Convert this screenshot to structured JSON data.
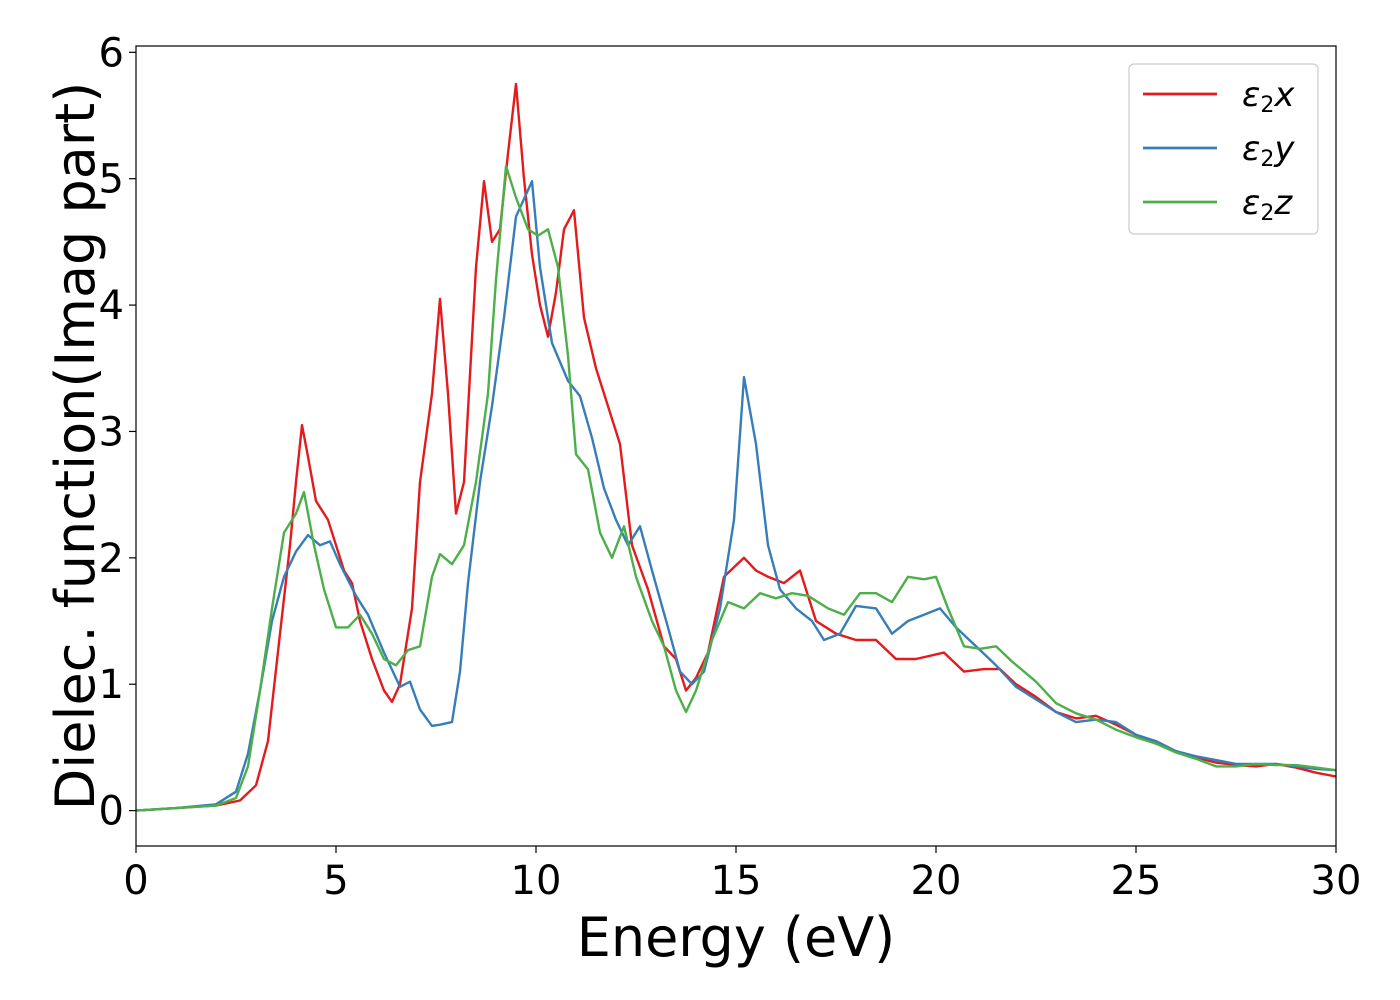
{
  "chart_data": {
    "type": "line",
    "xlabel": "Energy (eV)",
    "ylabel": "Dielec. function(Imag part)",
    "xlim": [
      0,
      30
    ],
    "ylim": [
      -0.28,
      6.05
    ],
    "xticks": [
      "0",
      "5",
      "10",
      "15",
      "20",
      "25",
      "30"
    ],
    "yticks": [
      "0",
      "1",
      "2",
      "3",
      "4",
      "5",
      "6"
    ],
    "grid": false,
    "legend_position": "top-right",
    "series": [
      {
        "name": "ε2x",
        "legend": {
          "main": "ε",
          "sub": "2",
          "suffix": "x"
        },
        "color": "#e41a1c",
        "points": [
          [
            0,
            0
          ],
          [
            1,
            0.02
          ],
          [
            2,
            0.04
          ],
          [
            2.6,
            0.08
          ],
          [
            3,
            0.2
          ],
          [
            3.3,
            0.55
          ],
          [
            3.6,
            1.4
          ],
          [
            3.85,
            2.1
          ],
          [
            4,
            2.6
          ],
          [
            4.15,
            3.05
          ],
          [
            4.3,
            2.8
          ],
          [
            4.5,
            2.45
          ],
          [
            4.8,
            2.3
          ],
          [
            5,
            2.1
          ],
          [
            5.2,
            1.9
          ],
          [
            5.4,
            1.8
          ],
          [
            5.6,
            1.5
          ],
          [
            5.9,
            1.2
          ],
          [
            6.2,
            0.95
          ],
          [
            6.4,
            0.86
          ],
          [
            6.6,
            1.0
          ],
          [
            6.9,
            1.6
          ],
          [
            7.1,
            2.6
          ],
          [
            7.4,
            3.3
          ],
          [
            7.6,
            4.05
          ],
          [
            7.8,
            3.3
          ],
          [
            8,
            2.35
          ],
          [
            8.2,
            2.6
          ],
          [
            8.5,
            4.3
          ],
          [
            8.7,
            4.98
          ],
          [
            8.9,
            4.5
          ],
          [
            9.1,
            4.6
          ],
          [
            9.3,
            5.2
          ],
          [
            9.5,
            5.75
          ],
          [
            9.7,
            5.0
          ],
          [
            9.9,
            4.4
          ],
          [
            10.1,
            4.0
          ],
          [
            10.3,
            3.75
          ],
          [
            10.5,
            4.1
          ],
          [
            10.7,
            4.6
          ],
          [
            10.95,
            4.75
          ],
          [
            11.2,
            3.9
          ],
          [
            11.5,
            3.5
          ],
          [
            11.8,
            3.2
          ],
          [
            12.1,
            2.9
          ],
          [
            12.4,
            2.1
          ],
          [
            12.8,
            1.75
          ],
          [
            13.2,
            1.3
          ],
          [
            13.5,
            1.2
          ],
          [
            13.75,
            0.95
          ],
          [
            14,
            1.05
          ],
          [
            14.3,
            1.25
          ],
          [
            14.7,
            1.85
          ],
          [
            15.2,
            2.0
          ],
          [
            15.5,
            1.9
          ],
          [
            15.8,
            1.85
          ],
          [
            16.2,
            1.8
          ],
          [
            16.6,
            1.9
          ],
          [
            17,
            1.5
          ],
          [
            17.5,
            1.4
          ],
          [
            18,
            1.35
          ],
          [
            18.5,
            1.35
          ],
          [
            19,
            1.2
          ],
          [
            19.5,
            1.2
          ],
          [
            20.2,
            1.25
          ],
          [
            20.7,
            1.1
          ],
          [
            21.2,
            1.12
          ],
          [
            21.6,
            1.12
          ],
          [
            22,
            1.0
          ],
          [
            22.5,
            0.9
          ],
          [
            23,
            0.78
          ],
          [
            23.5,
            0.73
          ],
          [
            24,
            0.75
          ],
          [
            24.5,
            0.68
          ],
          [
            25,
            0.6
          ],
          [
            25.5,
            0.53
          ],
          [
            26,
            0.47
          ],
          [
            26.5,
            0.42
          ],
          [
            27,
            0.38
          ],
          [
            27.5,
            0.36
          ],
          [
            28,
            0.35
          ],
          [
            28.5,
            0.37
          ],
          [
            29,
            0.34
          ],
          [
            29.5,
            0.3
          ],
          [
            30,
            0.27
          ]
        ]
      },
      {
        "name": "ε2y",
        "legend": {
          "main": "ε",
          "sub": "2",
          "suffix": "y"
        },
        "color": "#377eb8",
        "points": [
          [
            0,
            0
          ],
          [
            1,
            0.02
          ],
          [
            2,
            0.05
          ],
          [
            2.5,
            0.15
          ],
          [
            2.8,
            0.45
          ],
          [
            3.1,
            0.95
          ],
          [
            3.4,
            1.5
          ],
          [
            3.7,
            1.85
          ],
          [
            4,
            2.05
          ],
          [
            4.3,
            2.18
          ],
          [
            4.6,
            2.1
          ],
          [
            4.85,
            2.13
          ],
          [
            5.1,
            1.95
          ],
          [
            5.5,
            1.7
          ],
          [
            5.8,
            1.55
          ],
          [
            6.2,
            1.25
          ],
          [
            6.6,
            0.98
          ],
          [
            6.85,
            1.02
          ],
          [
            7.1,
            0.8
          ],
          [
            7.4,
            0.67
          ],
          [
            7.6,
            0.68
          ],
          [
            7.9,
            0.7
          ],
          [
            8.1,
            1.1
          ],
          [
            8.3,
            1.8
          ],
          [
            8.6,
            2.6
          ],
          [
            8.9,
            3.2
          ],
          [
            9.2,
            3.9
          ],
          [
            9.5,
            4.7
          ],
          [
            9.9,
            4.98
          ],
          [
            10.1,
            4.3
          ],
          [
            10.4,
            3.7
          ],
          [
            10.8,
            3.4
          ],
          [
            11.1,
            3.28
          ],
          [
            11.4,
            2.95
          ],
          [
            11.7,
            2.55
          ],
          [
            12,
            2.3
          ],
          [
            12.3,
            2.1
          ],
          [
            12.6,
            2.25
          ],
          [
            12.9,
            1.9
          ],
          [
            13.3,
            1.45
          ],
          [
            13.6,
            1.1
          ],
          [
            13.9,
            1.0
          ],
          [
            14.2,
            1.1
          ],
          [
            14.6,
            1.6
          ],
          [
            14.95,
            2.3
          ],
          [
            15.2,
            3.43
          ],
          [
            15.5,
            2.9
          ],
          [
            15.8,
            2.1
          ],
          [
            16.1,
            1.75
          ],
          [
            16.5,
            1.6
          ],
          [
            16.9,
            1.5
          ],
          [
            17.2,
            1.35
          ],
          [
            17.6,
            1.4
          ],
          [
            18,
            1.62
          ],
          [
            18.5,
            1.6
          ],
          [
            18.9,
            1.4
          ],
          [
            19.3,
            1.5
          ],
          [
            19.7,
            1.55
          ],
          [
            20.1,
            1.6
          ],
          [
            20.5,
            1.45
          ],
          [
            21,
            1.3
          ],
          [
            21.5,
            1.15
          ],
          [
            22,
            0.98
          ],
          [
            22.5,
            0.88
          ],
          [
            23,
            0.78
          ],
          [
            23.5,
            0.7
          ],
          [
            24,
            0.72
          ],
          [
            24.5,
            0.7
          ],
          [
            25,
            0.6
          ],
          [
            25.5,
            0.55
          ],
          [
            26,
            0.47
          ],
          [
            26.5,
            0.43
          ],
          [
            27,
            0.4
          ],
          [
            27.5,
            0.37
          ],
          [
            28,
            0.37
          ],
          [
            28.5,
            0.37
          ],
          [
            29,
            0.35
          ],
          [
            29.5,
            0.33
          ],
          [
            30,
            0.32
          ]
        ]
      },
      {
        "name": "ε2z",
        "legend": {
          "main": "ε",
          "sub": "2",
          "suffix": "z"
        },
        "color": "#4daf4a",
        "points": [
          [
            0,
            0
          ],
          [
            1,
            0.02
          ],
          [
            2,
            0.04
          ],
          [
            2.5,
            0.1
          ],
          [
            2.8,
            0.35
          ],
          [
            3.1,
            0.95
          ],
          [
            3.4,
            1.6
          ],
          [
            3.7,
            2.2
          ],
          [
            4,
            2.35
          ],
          [
            4.2,
            2.52
          ],
          [
            4.45,
            2.1
          ],
          [
            4.7,
            1.75
          ],
          [
            5,
            1.45
          ],
          [
            5.3,
            1.45
          ],
          [
            5.6,
            1.55
          ],
          [
            5.9,
            1.4
          ],
          [
            6.2,
            1.2
          ],
          [
            6.5,
            1.15
          ],
          [
            6.8,
            1.27
          ],
          [
            7.1,
            1.3
          ],
          [
            7.4,
            1.85
          ],
          [
            7.6,
            2.03
          ],
          [
            7.9,
            1.95
          ],
          [
            8.2,
            2.1
          ],
          [
            8.5,
            2.6
          ],
          [
            8.8,
            3.3
          ],
          [
            9.0,
            4.2
          ],
          [
            9.25,
            5.1
          ],
          [
            9.5,
            4.85
          ],
          [
            9.8,
            4.6
          ],
          [
            10.05,
            4.55
          ],
          [
            10.3,
            4.6
          ],
          [
            10.55,
            4.3
          ],
          [
            10.8,
            3.6
          ],
          [
            11.0,
            2.82
          ],
          [
            11.3,
            2.7
          ],
          [
            11.6,
            2.2
          ],
          [
            11.9,
            2.0
          ],
          [
            12.2,
            2.25
          ],
          [
            12.5,
            1.85
          ],
          [
            12.9,
            1.5
          ],
          [
            13.2,
            1.3
          ],
          [
            13.5,
            0.95
          ],
          [
            13.75,
            0.78
          ],
          [
            14,
            0.95
          ],
          [
            14.4,
            1.35
          ],
          [
            14.8,
            1.65
          ],
          [
            15.2,
            1.6
          ],
          [
            15.6,
            1.72
          ],
          [
            16,
            1.68
          ],
          [
            16.4,
            1.72
          ],
          [
            16.8,
            1.7
          ],
          [
            17.3,
            1.6
          ],
          [
            17.7,
            1.55
          ],
          [
            18.1,
            1.72
          ],
          [
            18.5,
            1.72
          ],
          [
            18.9,
            1.65
          ],
          [
            19.3,
            1.85
          ],
          [
            19.7,
            1.83
          ],
          [
            20,
            1.85
          ],
          [
            20.3,
            1.6
          ],
          [
            20.7,
            1.3
          ],
          [
            21.1,
            1.28
          ],
          [
            21.5,
            1.3
          ],
          [
            21.9,
            1.18
          ],
          [
            22.5,
            1.02
          ],
          [
            23,
            0.85
          ],
          [
            23.5,
            0.77
          ],
          [
            24,
            0.72
          ],
          [
            24.5,
            0.64
          ],
          [
            25,
            0.58
          ],
          [
            25.5,
            0.53
          ],
          [
            26,
            0.46
          ],
          [
            26.5,
            0.41
          ],
          [
            27,
            0.35
          ],
          [
            27.5,
            0.35
          ],
          [
            28,
            0.37
          ],
          [
            28.5,
            0.36
          ],
          [
            29,
            0.36
          ],
          [
            29.5,
            0.34
          ],
          [
            30,
            0.32
          ]
        ]
      }
    ]
  }
}
